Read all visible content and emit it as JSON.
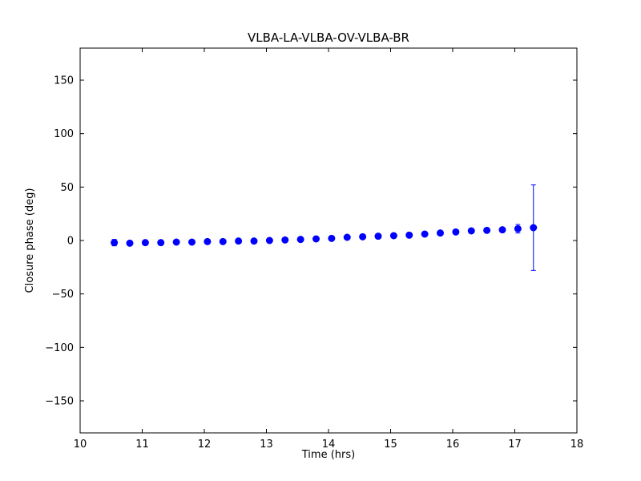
{
  "chart_data": {
    "type": "scatter",
    "title": "VLBA-LA-VLBA-OV-VLBA-BR",
    "xlabel": "Time (hrs)",
    "ylabel": "Closure phase (deg)",
    "xlim": [
      10,
      18
    ],
    "ylim": [
      -180,
      180
    ],
    "xticks": [
      10,
      11,
      12,
      13,
      14,
      15,
      16,
      17,
      18
    ],
    "yticks": [
      -150,
      -100,
      -50,
      0,
      50,
      100,
      150
    ],
    "grid": false,
    "legend": "none",
    "marker_color": "#0000ff",
    "series": [
      {
        "name": "closure phase",
        "x": [
          10.55,
          10.8,
          11.05,
          11.3,
          11.55,
          11.8,
          12.05,
          12.3,
          12.55,
          12.8,
          13.05,
          13.3,
          13.55,
          13.8,
          14.05,
          14.3,
          14.55,
          14.8,
          15.05,
          15.3,
          15.55,
          15.8,
          16.05,
          16.3,
          16.55,
          16.8,
          17.05,
          17.3
        ],
        "y": [
          -2,
          -2.5,
          -2,
          -2,
          -1.5,
          -1.5,
          -1,
          -1,
          -0.5,
          -0.5,
          0,
          0.5,
          1,
          1.5,
          2,
          3,
          3.5,
          4,
          4.5,
          5,
          6,
          7,
          8,
          9,
          9.5,
          10,
          11,
          12
        ],
        "yerr": [
          3,
          1,
          1,
          1,
          1,
          1,
          1,
          1,
          1,
          1,
          1,
          1,
          1,
          1,
          1,
          1,
          1,
          1,
          1,
          1,
          1,
          1,
          1,
          1,
          1,
          1,
          4,
          40
        ]
      }
    ]
  }
}
